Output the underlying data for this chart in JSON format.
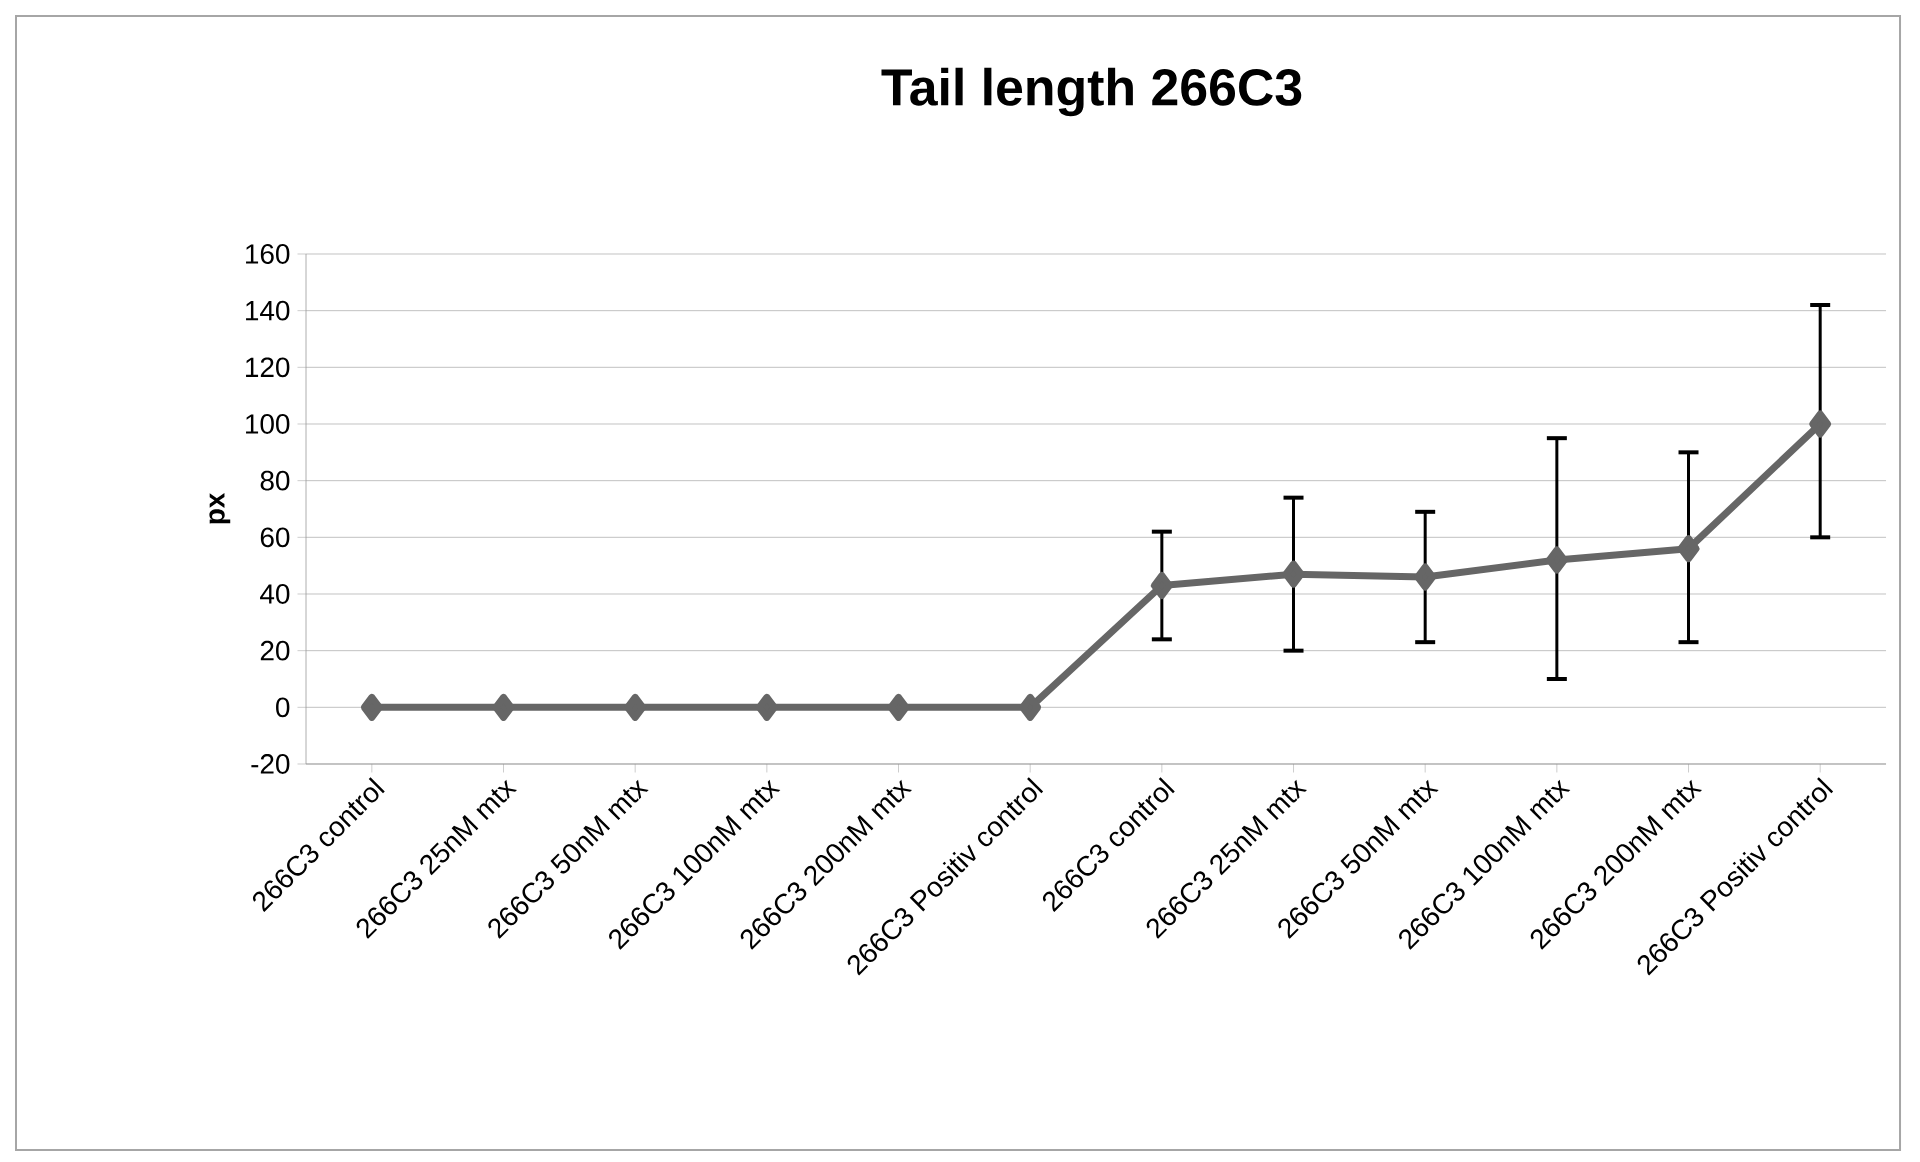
{
  "chart_data": {
    "type": "line",
    "title": "Tail length 266C3",
    "ylabel": "px",
    "categories": [
      "266C3 control",
      "266C3 25nM mtx",
      "266C3 50nM mtx",
      "266C3 100nM mtx",
      "266C3 200nM mtx",
      "266C3 Positiv control",
      "266C3 control",
      "266C3 25nM mtx",
      "266C3 50nM mtx",
      "266C3 100nM mtx",
      "266C3 200nM mtx",
      "266C3 Positiv control"
    ],
    "values": [
      0,
      0,
      0,
      0,
      0,
      0,
      43,
      47,
      46,
      52,
      56,
      100
    ],
    "errors": [
      null,
      null,
      null,
      null,
      null,
      null,
      [
        24,
        62
      ],
      [
        20,
        74
      ],
      [
        23,
        69
      ],
      [
        10,
        95
      ],
      [
        23,
        90
      ],
      [
        60,
        142
      ]
    ],
    "color": "#666666",
    "marker": "diamond",
    "line_style": "solid",
    "ylim": [
      -20,
      160
    ],
    "yticks": [
      -20,
      0,
      20,
      40,
      60,
      80,
      100,
      120,
      140,
      160
    ],
    "grid": "y"
  }
}
